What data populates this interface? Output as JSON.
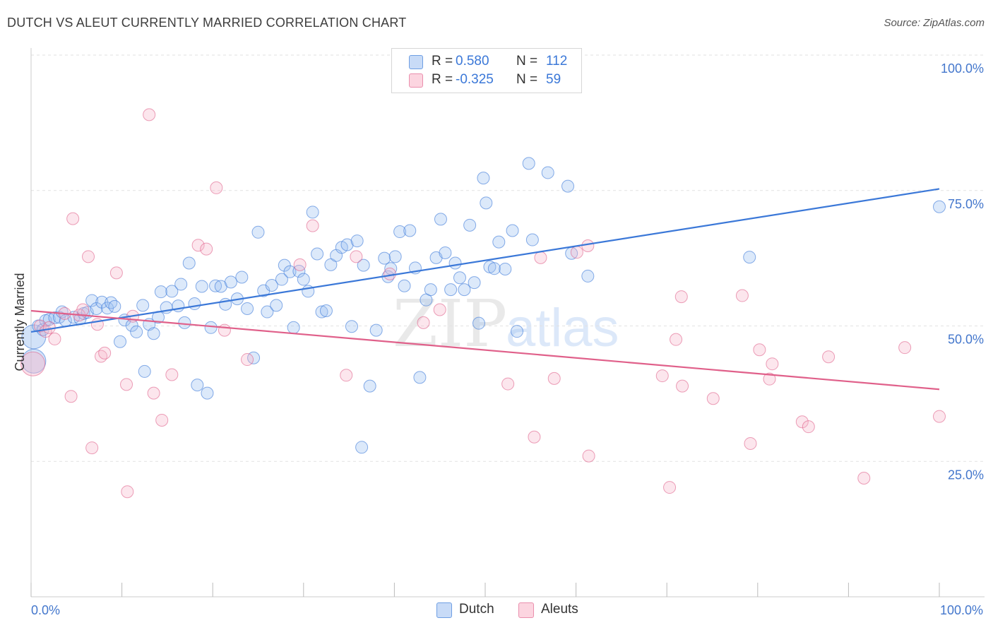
{
  "header": {
    "title": "DUTCH VS ALEUT CURRENTLY MARRIED CORRELATION CHART",
    "source": "Source: ZipAtlas.com"
  },
  "watermark": {
    "zip": "ZIP",
    "atlas": "atlas"
  },
  "legend": {
    "rows": [
      {
        "r_label": "R =",
        "r_value": "0.580",
        "n_label": "N =",
        "n_value": "112",
        "color": "#9cbff0"
      },
      {
        "r_label": "R =",
        "r_value": "-0.325",
        "n_label": "N =",
        "n_value": "59",
        "color": "#f7b8cb"
      }
    ]
  },
  "bottom_legend": [
    {
      "label": "Dutch",
      "color": "#9cbff0"
    },
    {
      "label": "Aleuts",
      "color": "#f7b8cb"
    }
  ],
  "chart_data": {
    "type": "scatter",
    "title": "DUTCH VS ALEUT CURRENTLY MARRIED CORRELATION CHART",
    "xlabel": "",
    "ylabel": "Currently Married",
    "xlim": [
      0,
      100
    ],
    "ylim": [
      0,
      100
    ],
    "x_tick_labels": [
      "0.0%",
      "100.0%"
    ],
    "y_tick_labels": [
      "25.0%",
      "50.0%",
      "75.0%",
      "100.0%"
    ],
    "y_ticks": [
      25,
      50,
      75,
      100
    ],
    "grid": true,
    "legend_position": "top-center",
    "series": [
      {
        "name": "Dutch",
        "color": "#3b78d8",
        "fill": "#9cbff0",
        "trend": {
          "x": [
            0,
            100
          ],
          "y": [
            48.9,
            75.3
          ]
        },
        "points": [
          [
            0.3,
            48.0
          ],
          [
            0.3,
            43.5
          ],
          [
            0.8,
            50.0
          ],
          [
            1.3,
            49.3
          ],
          [
            1.6,
            51.0
          ],
          [
            2.0,
            51.2
          ],
          [
            2.6,
            51.5
          ],
          [
            3.1,
            51.6
          ],
          [
            3.4,
            52.6
          ],
          [
            3.8,
            51.0
          ],
          [
            4.7,
            51.6
          ],
          [
            5.4,
            51.3
          ],
          [
            5.8,
            52.3
          ],
          [
            6.2,
            52.5
          ],
          [
            6.7,
            54.7
          ],
          [
            7.2,
            53.2
          ],
          [
            7.8,
            54.4
          ],
          [
            8.4,
            53.3
          ],
          [
            8.8,
            54.3
          ],
          [
            9.2,
            53.6
          ],
          [
            9.8,
            47.1
          ],
          [
            10.3,
            51.1
          ],
          [
            11.1,
            50.1
          ],
          [
            11.6,
            48.9
          ],
          [
            12.3,
            53.8
          ],
          [
            12.5,
            41.6
          ],
          [
            13.0,
            50.3
          ],
          [
            13.5,
            48.6
          ],
          [
            14.0,
            51.6
          ],
          [
            14.3,
            56.3
          ],
          [
            14.9,
            53.4
          ],
          [
            15.5,
            56.4
          ],
          [
            16.2,
            53.7
          ],
          [
            16.5,
            57.7
          ],
          [
            16.9,
            50.6
          ],
          [
            17.4,
            61.6
          ],
          [
            18.0,
            54.1
          ],
          [
            18.3,
            39.1
          ],
          [
            18.8,
            57.3
          ],
          [
            19.4,
            37.6
          ],
          [
            19.8,
            49.7
          ],
          [
            20.3,
            57.4
          ],
          [
            20.9,
            57.3
          ],
          [
            21.4,
            54.0
          ],
          [
            22.0,
            58.1
          ],
          [
            22.7,
            55.0
          ],
          [
            23.2,
            59.0
          ],
          [
            23.8,
            53.2
          ],
          [
            24.5,
            44.1
          ],
          [
            25.0,
            67.3
          ],
          [
            25.6,
            56.5
          ],
          [
            26.0,
            52.6
          ],
          [
            26.5,
            57.5
          ],
          [
            27.0,
            53.8
          ],
          [
            27.6,
            58.6
          ],
          [
            27.9,
            61.2
          ],
          [
            28.5,
            60.0
          ],
          [
            28.9,
            49.7
          ],
          [
            29.5,
            60.1
          ],
          [
            30.0,
            58.6
          ],
          [
            30.5,
            56.4
          ],
          [
            31.0,
            71.0
          ],
          [
            31.5,
            63.3
          ],
          [
            32.0,
            52.6
          ],
          [
            32.5,
            52.8
          ],
          [
            33.0,
            61.3
          ],
          [
            33.6,
            63.0
          ],
          [
            34.2,
            64.5
          ],
          [
            34.8,
            65.0
          ],
          [
            35.3,
            49.9
          ],
          [
            35.9,
            65.7
          ],
          [
            36.4,
            27.6
          ],
          [
            36.6,
            61.2
          ],
          [
            37.3,
            38.9
          ],
          [
            38.0,
            49.2
          ],
          [
            38.9,
            62.5
          ],
          [
            39.3,
            59.1
          ],
          [
            39.6,
            60.6
          ],
          [
            40.1,
            62.8
          ],
          [
            40.6,
            67.4
          ],
          [
            41.1,
            57.4
          ],
          [
            41.7,
            67.6
          ],
          [
            42.3,
            60.7
          ],
          [
            42.8,
            40.5
          ],
          [
            43.5,
            54.8
          ],
          [
            44.0,
            56.7
          ],
          [
            44.6,
            62.6
          ],
          [
            45.1,
            69.7
          ],
          [
            45.6,
            63.5
          ],
          [
            46.2,
            56.7
          ],
          [
            46.7,
            61.6
          ],
          [
            47.2,
            58.9
          ],
          [
            47.7,
            56.7
          ],
          [
            48.3,
            68.6
          ],
          [
            48.8,
            58.0
          ],
          [
            49.3,
            50.5
          ],
          [
            49.8,
            77.3
          ],
          [
            50.1,
            72.7
          ],
          [
            50.5,
            60.9
          ],
          [
            51.0,
            60.6
          ],
          [
            51.5,
            65.5
          ],
          [
            52.2,
            60.5
          ],
          [
            53.0,
            67.6
          ],
          [
            53.5,
            49.0
          ],
          [
            54.8,
            80.0
          ],
          [
            55.2,
            65.9
          ],
          [
            56.9,
            78.3
          ],
          [
            59.1,
            75.8
          ],
          [
            59.5,
            63.4
          ],
          [
            61.3,
            59.2
          ],
          [
            79.1,
            62.7
          ],
          [
            100.0,
            72.0
          ]
        ]
      },
      {
        "name": "Aleuts",
        "color": "#e0608a",
        "fill": "#f7b8cb",
        "trend": {
          "x": [
            0,
            100
          ],
          "y": [
            52.8,
            38.3
          ]
        },
        "points": [
          [
            0.2,
            43.0
          ],
          [
            1.0,
            50.0
          ],
          [
            1.6,
            49.0
          ],
          [
            2.0,
            49.7
          ],
          [
            2.6,
            47.6
          ],
          [
            3.7,
            52.3
          ],
          [
            4.4,
            37.0
          ],
          [
            4.6,
            69.8
          ],
          [
            5.3,
            52.0
          ],
          [
            5.7,
            53.0
          ],
          [
            6.3,
            62.8
          ],
          [
            6.7,
            27.5
          ],
          [
            7.3,
            50.3
          ],
          [
            7.7,
            44.4
          ],
          [
            8.1,
            45.0
          ],
          [
            9.4,
            59.8
          ],
          [
            10.5,
            39.2
          ],
          [
            10.6,
            19.4
          ],
          [
            11.2,
            51.8
          ],
          [
            13.0,
            89.0
          ],
          [
            13.5,
            37.6
          ],
          [
            14.4,
            32.6
          ],
          [
            15.5,
            41.0
          ],
          [
            18.4,
            64.9
          ],
          [
            19.3,
            64.2
          ],
          [
            20.4,
            75.5
          ],
          [
            21.3,
            49.2
          ],
          [
            23.8,
            43.8
          ],
          [
            29.6,
            61.3
          ],
          [
            31.0,
            68.5
          ],
          [
            34.7,
            40.9
          ],
          [
            35.8,
            62.8
          ],
          [
            39.5,
            59.6
          ],
          [
            43.2,
            50.6
          ],
          [
            45.0,
            53.0
          ],
          [
            52.5,
            39.3
          ],
          [
            55.4,
            29.5
          ],
          [
            56.1,
            62.6
          ],
          [
            57.6,
            40.3
          ],
          [
            60.1,
            63.6
          ],
          [
            61.3,
            64.8
          ],
          [
            61.4,
            26.0
          ],
          [
            69.5,
            40.8
          ],
          [
            70.3,
            20.2
          ],
          [
            71.0,
            47.5
          ],
          [
            71.6,
            55.4
          ],
          [
            71.7,
            38.9
          ],
          [
            75.1,
            36.6
          ],
          [
            78.3,
            55.6
          ],
          [
            79.2,
            28.3
          ],
          [
            80.2,
            45.6
          ],
          [
            81.3,
            40.2
          ],
          [
            81.6,
            43.0
          ],
          [
            84.9,
            32.3
          ],
          [
            85.6,
            31.4
          ],
          [
            87.8,
            44.3
          ],
          [
            91.7,
            21.9
          ],
          [
            96.2,
            46.0
          ],
          [
            100.0,
            33.3
          ]
        ]
      }
    ]
  }
}
